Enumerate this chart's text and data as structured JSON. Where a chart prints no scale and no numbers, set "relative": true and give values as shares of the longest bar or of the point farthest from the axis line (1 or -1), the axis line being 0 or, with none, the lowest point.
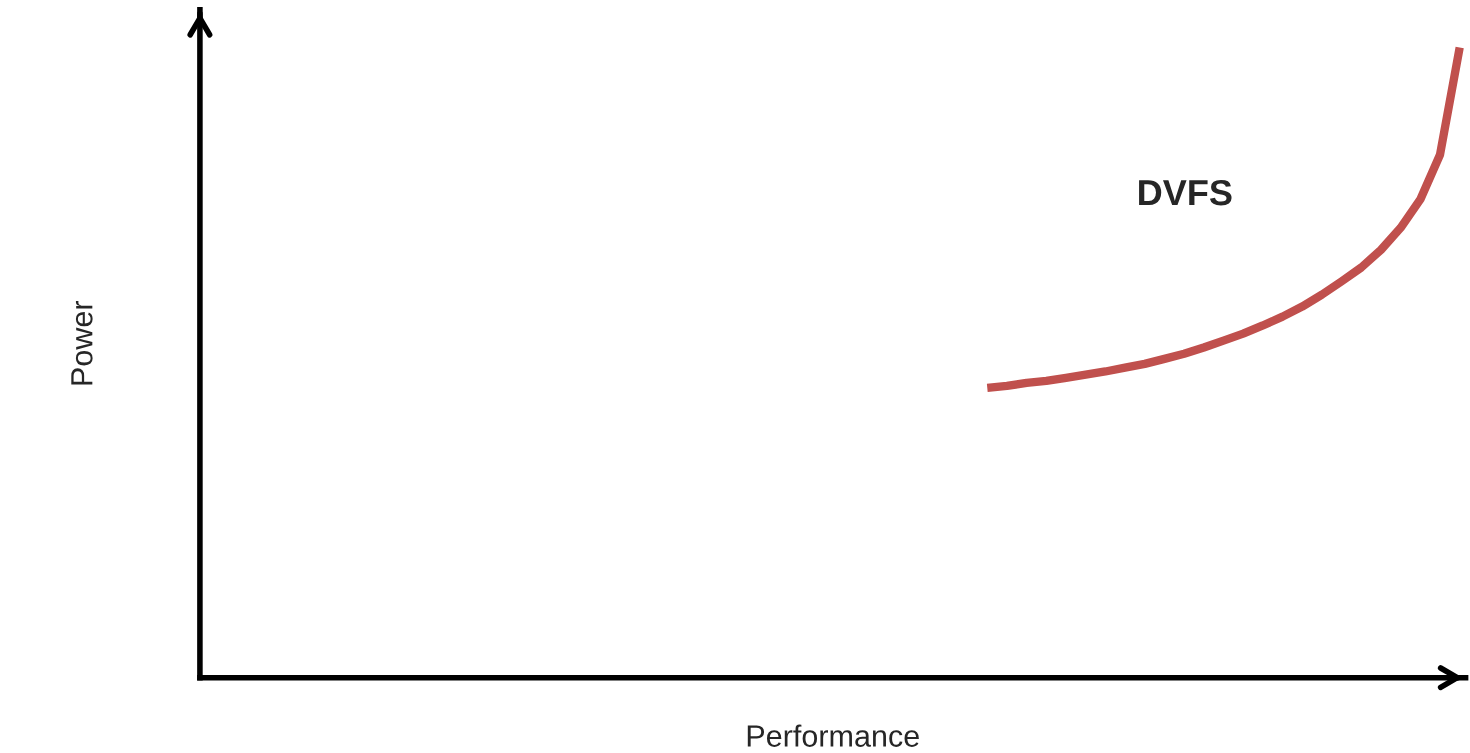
{
  "chart_data": {
    "type": "line",
    "relative": true,
    "xlabel": "Performance",
    "ylabel": "Power",
    "categories": [
      null,
      null,
      null,
      null,
      null,
      null,
      null,
      null,
      null,
      null,
      null,
      null,
      null,
      null,
      null,
      null,
      null,
      null,
      null,
      null,
      null,
      null,
      null,
      null,
      null,
      null,
      null,
      null,
      null,
      null,
      null,
      null,
      null,
      null,
      null,
      null,
      null,
      null,
      null,
      null,
      null,
      null,
      null,
      null,
      null,
      null,
      null,
      null,
      null,
      null,
      null,
      null,
      null,
      null,
      null,
      null,
      null,
      null,
      null,
      null,
      null,
      null,
      null,
      null,
      null
    ],
    "series": [
      {
        "color": "#c0504d",
        "values": [
          null,
          null,
          null,
          null,
          null,
          null,
          null,
          null,
          null,
          null,
          null,
          null,
          null,
          null,
          null,
          null,
          null,
          null,
          null,
          null,
          null,
          null,
          null,
          null,
          null,
          null,
          null,
          null,
          null,
          null,
          null,
          null,
          null,
          null,
          null,
          null,
          null,
          null,
          null,
          null,
          0.46,
          0.463,
          0.468,
          0.471,
          0.476,
          0.481,
          0.486,
          0.492,
          0.498,
          0.506,
          0.514,
          0.524,
          0.535,
          0.546,
          0.559,
          0.573,
          0.589,
          0.608,
          0.629,
          0.651,
          0.679,
          0.714,
          0.759,
          0.83,
          1.0
        ]
      }
    ],
    "annotations": [
      "DVFS"
    ],
    "legend": false,
    "grid": false
  }
}
